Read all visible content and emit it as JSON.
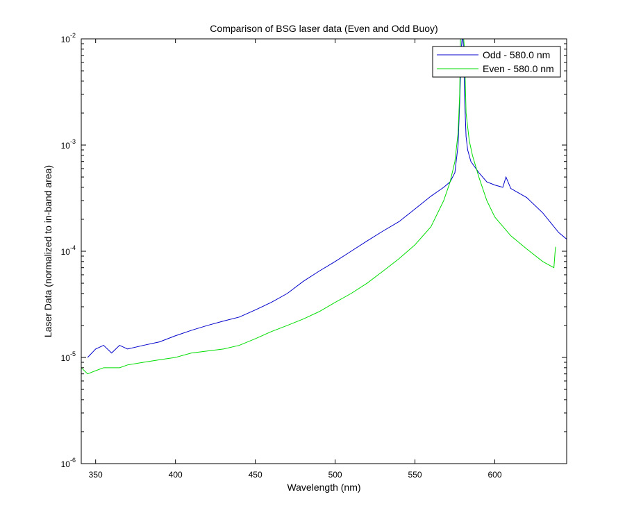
{
  "chart_data": {
    "type": "line",
    "title": "Comparison of BSG laser data (Even and Odd Buoy)",
    "xlabel": "Wavelength (nm)",
    "ylabel": "Laser Data (normalized to in-band area)",
    "xlim": [
      341,
      645
    ],
    "ylim": [
      1e-06,
      0.01
    ],
    "yscale": "log",
    "grid": false,
    "legend_position": "top-right",
    "x_ticks": [
      350,
      400,
      450,
      500,
      550,
      600
    ],
    "y_ticks": [
      {
        "base": "10",
        "exp": "-6",
        "value": 1e-06
      },
      {
        "base": "10",
        "exp": "-5",
        "value": 1e-05
      },
      {
        "base": "10",
        "exp": "-4",
        "value": 0.0001
      },
      {
        "base": "10",
        "exp": "-3",
        "value": 0.001
      },
      {
        "base": "10",
        "exp": "-2",
        "value": 0.01
      }
    ],
    "series": [
      {
        "name": "Odd - 580.0 nm",
        "color": "#0000cc",
        "x": [
          345,
          350,
          355,
          360,
          365,
          370,
          380,
          390,
          400,
          410,
          420,
          430,
          440,
          450,
          460,
          470,
          480,
          490,
          500,
          510,
          520,
          530,
          540,
          550,
          560,
          568,
          572,
          575,
          577,
          578,
          579,
          579.5,
          580,
          580.5,
          581,
          582,
          583,
          585,
          590,
          595,
          600,
          605,
          607,
          610,
          620,
          630,
          640,
          645
        ],
        "y": [
          1e-05,
          1.2e-05,
          1.3e-05,
          1.1e-05,
          1.3e-05,
          1.2e-05,
          1.3e-05,
          1.4e-05,
          1.6e-05,
          1.8e-05,
          2e-05,
          2.2e-05,
          2.4e-05,
          2.8e-05,
          3.3e-05,
          4e-05,
          5.2e-05,
          6.5e-05,
          8e-05,
          0.0001,
          0.000125,
          0.000155,
          0.00019,
          0.00025,
          0.00033,
          0.0004,
          0.00045,
          0.00055,
          0.001,
          0.0025,
          0.008,
          0.01,
          0.01,
          0.008,
          0.003,
          0.0012,
          0.0009,
          0.0007,
          0.00055,
          0.00045,
          0.00042,
          0.0004,
          0.0005,
          0.00039,
          0.00032,
          0.00023,
          0.00015,
          0.00013
        ]
      },
      {
        "name": "Even - 580.0 nm",
        "color": "#00dd00",
        "x": [
          341,
          345,
          350,
          355,
          360,
          365,
          370,
          380,
          390,
          400,
          410,
          420,
          430,
          440,
          450,
          460,
          470,
          480,
          490,
          500,
          510,
          520,
          530,
          540,
          550,
          560,
          568,
          572,
          575,
          577,
          578,
          578.5,
          579,
          580,
          580.5,
          581,
          582,
          584,
          586,
          590,
          595,
          600,
          610,
          620,
          630,
          637,
          638
        ],
        "y": [
          8e-06,
          7e-06,
          7.5e-06,
          8e-06,
          8e-06,
          8e-06,
          8.5e-06,
          9e-06,
          9.5e-06,
          1e-05,
          1.1e-05,
          1.15e-05,
          1.2e-05,
          1.3e-05,
          1.5e-05,
          1.75e-05,
          2e-05,
          2.3e-05,
          2.7e-05,
          3.3e-05,
          4e-05,
          5e-05,
          6.5e-05,
          8.5e-05,
          0.000115,
          0.00017,
          0.0003,
          0.00045,
          0.0007,
          0.0013,
          0.003,
          0.01,
          0.01,
          0.01,
          0.01,
          0.008,
          0.002,
          0.0011,
          0.0008,
          0.0005,
          0.0003,
          0.00021,
          0.00014,
          0.000105,
          8e-05,
          7e-05,
          0.00011
        ]
      }
    ]
  }
}
